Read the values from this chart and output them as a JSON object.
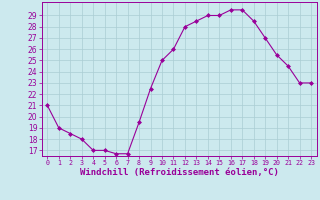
{
  "x": [
    0,
    1,
    2,
    3,
    4,
    5,
    6,
    7,
    8,
    9,
    10,
    11,
    12,
    13,
    14,
    15,
    16,
    17,
    18,
    19,
    20,
    21,
    22,
    23
  ],
  "y": [
    21,
    19,
    18.5,
    18,
    17,
    17,
    16.7,
    16.7,
    19.5,
    22.5,
    25,
    26,
    28,
    28.5,
    29,
    29,
    29.5,
    29.5,
    28.5,
    27,
    25.5,
    24.5,
    23,
    23
  ],
  "line_color": "#990099",
  "marker": "D",
  "markersize": 2.0,
  "linewidth": 0.8,
  "xlabel": "Windchill (Refroidissement éolien,°C)",
  "xlabel_fontsize": 6.5,
  "yticks": [
    17,
    18,
    19,
    20,
    21,
    22,
    23,
    24,
    25,
    26,
    27,
    28,
    29
  ],
  "xticks": [
    0,
    1,
    2,
    3,
    4,
    5,
    6,
    7,
    8,
    9,
    10,
    11,
    12,
    13,
    14,
    15,
    16,
    17,
    18,
    19,
    20,
    21,
    22,
    23
  ],
  "xtick_labels": [
    "0",
    "1",
    "2",
    "3",
    "4",
    "5",
    "6",
    "7",
    "8",
    "9",
    "10",
    "11",
    "12",
    "13",
    "14",
    "15",
    "16",
    "17",
    "18",
    "19",
    "20",
    "21",
    "22",
    "23"
  ],
  "ylim": [
    16.5,
    30.2
  ],
  "xlim": [
    -0.5,
    23.5
  ],
  "bg_color": "#cce9ee",
  "grid_color": "#aacdd4",
  "tick_color": "#990099",
  "tick_label_color": "#990099",
  "xlabel_color": "#990099",
  "ytick_fontsize": 5.5,
  "xtick_fontsize": 4.8
}
